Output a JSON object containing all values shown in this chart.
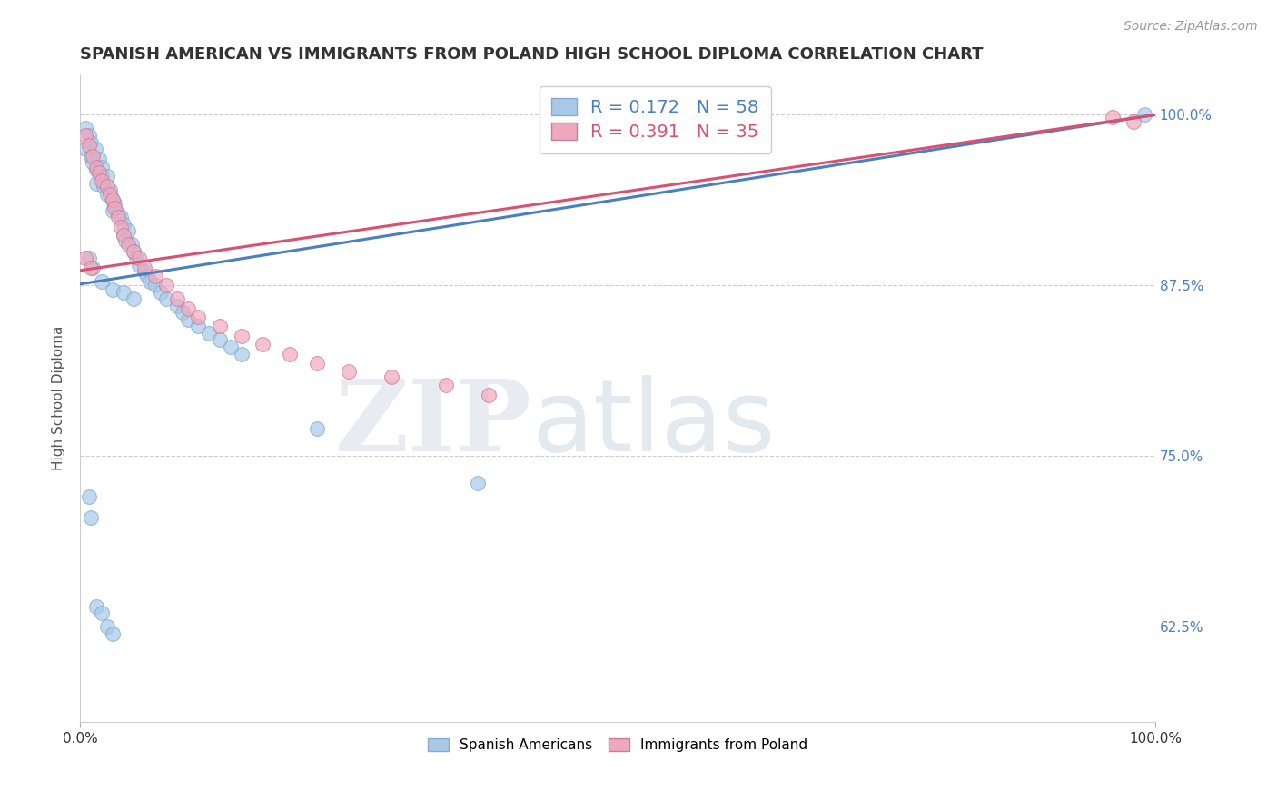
{
  "title": "SPANISH AMERICAN VS IMMIGRANTS FROM POLAND HIGH SCHOOL DIPLOMA CORRELATION CHART",
  "source": "Source: ZipAtlas.com",
  "ylabel": "High School Diploma",
  "watermark_zip": "ZIP",
  "watermark_atlas": "atlas",
  "xlim": [
    0,
    1.0
  ],
  "ylim": [
    0.555,
    1.03
  ],
  "yticks": [
    0.625,
    0.75,
    0.875,
    1.0
  ],
  "ytick_labels": [
    "62.5%",
    "75.0%",
    "87.5%",
    "100.0%"
  ],
  "xtick_labels": [
    "0.0%",
    "100.0%"
  ],
  "blue_scatter": {
    "color": "#a8c8e8",
    "edge_color": "#7aaad0",
    "alpha": 0.7,
    "x": [
      0.005,
      0.005,
      0.008,
      0.01,
      0.01,
      0.012,
      0.014,
      0.015,
      0.015,
      0.018,
      0.02,
      0.02,
      0.022,
      0.025,
      0.025,
      0.028,
      0.03,
      0.03,
      0.032,
      0.035,
      0.038,
      0.04,
      0.04,
      0.042,
      0.045,
      0.048,
      0.05,
      0.052,
      0.055,
      0.06,
      0.062,
      0.065,
      0.07,
      0.075,
      0.08,
      0.09,
      0.095,
      0.1,
      0.11,
      0.12,
      0.13,
      0.14,
      0.15,
      0.008,
      0.012,
      0.02,
      0.03,
      0.04,
      0.05,
      0.008,
      0.01,
      0.015,
      0.02,
      0.025,
      0.03,
      0.22,
      0.37,
      0.99
    ],
    "y": [
      0.99,
      0.975,
      0.985,
      0.98,
      0.97,
      0.965,
      0.975,
      0.96,
      0.95,
      0.968,
      0.962,
      0.955,
      0.948,
      0.955,
      0.942,
      0.945,
      0.938,
      0.93,
      0.935,
      0.928,
      0.925,
      0.92,
      0.912,
      0.908,
      0.915,
      0.905,
      0.9,
      0.895,
      0.89,
      0.885,
      0.882,
      0.878,
      0.875,
      0.87,
      0.865,
      0.86,
      0.855,
      0.85,
      0.845,
      0.84,
      0.835,
      0.83,
      0.825,
      0.895,
      0.888,
      0.878,
      0.872,
      0.87,
      0.865,
      0.72,
      0.705,
      0.64,
      0.635,
      0.625,
      0.62,
      0.77,
      0.73,
      1.0
    ]
  },
  "pink_scatter": {
    "color": "#f0a8bc",
    "edge_color": "#d07898",
    "alpha": 0.7,
    "x": [
      0.005,
      0.008,
      0.012,
      0.015,
      0.018,
      0.02,
      0.025,
      0.028,
      0.03,
      0.032,
      0.035,
      0.038,
      0.04,
      0.045,
      0.05,
      0.055,
      0.06,
      0.07,
      0.08,
      0.09,
      0.1,
      0.11,
      0.13,
      0.15,
      0.17,
      0.195,
      0.22,
      0.25,
      0.29,
      0.34,
      0.38,
      0.005,
      0.01,
      0.96,
      0.98
    ],
    "y": [
      0.985,
      0.978,
      0.97,
      0.962,
      0.958,
      0.952,
      0.948,
      0.942,
      0.938,
      0.932,
      0.925,
      0.918,
      0.912,
      0.905,
      0.9,
      0.895,
      0.888,
      0.882,
      0.875,
      0.865,
      0.858,
      0.852,
      0.845,
      0.838,
      0.832,
      0.825,
      0.818,
      0.812,
      0.808,
      0.802,
      0.795,
      0.895,
      0.888,
      0.998,
      0.995
    ]
  },
  "blue_line_color": "#4a7fc0",
  "pink_line_color": "#d95070",
  "blue_line_y0": 0.876,
  "blue_line_y1": 1.0,
  "pink_line_y0": 0.886,
  "pink_line_y1": 1.0,
  "grid_color": "#cccccc",
  "background_color": "#ffffff",
  "title_fontsize": 13,
  "axis_label_fontsize": 11,
  "tick_fontsize": 11,
  "source_fontsize": 10,
  "legend_label1": "R = 0.172   N = 58",
  "legend_label2": "R = 0.391   N = 35",
  "legend_color1": "#4a7fc0",
  "legend_color2": "#d95070",
  "legend_patch_color1": "#a8c8e8",
  "legend_patch_color2": "#f0a8bc",
  "bottom_label1": "Spanish Americans",
  "bottom_label2": "Immigrants from Poland"
}
